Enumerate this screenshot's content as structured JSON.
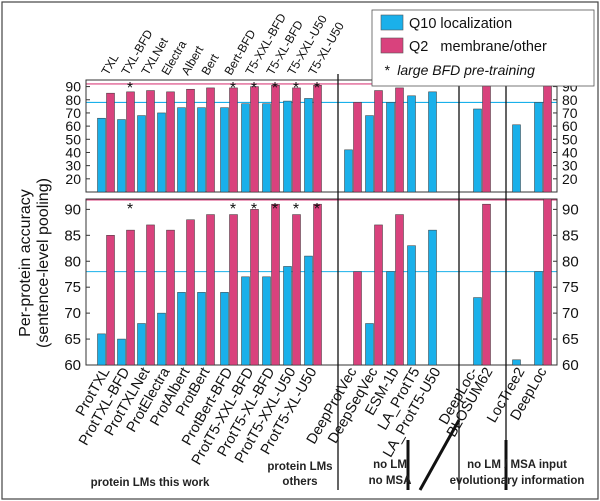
{
  "chart_data": {
    "type": "bar",
    "ylabel": "Per-protein accuracy",
    "ylabel2": "(sentence-level pooling)",
    "legend": {
      "placement": "top-right",
      "entries": [
        {
          "label": "Q10 localization",
          "color": "#1ab0ea"
        },
        {
          "label": "Q2   membrane/other",
          "color": "#d9427d"
        }
      ],
      "note": "*  large BFD pre-training"
    },
    "categories": [
      "ProtTXL",
      "ProtTXL-BFD",
      "ProtTXLNet",
      "ProtElectra",
      "ProtAlbert",
      "ProtBert",
      "ProtBert-BFD",
      "ProtT5-XXL-BFD",
      "ProtT5-XL-BFD",
      "ProtT5-XXL-U50",
      "ProtT5-XL-U50",
      "DeepProtVec",
      "DeepSeqVec",
      "ESM-1b",
      "LA_ProtT5",
      "LA_ProtT5-U50",
      "DeepLoc-BLOSUM62",
      "LocTree2",
      "DeepLoc"
    ],
    "top_labels": [
      "TXL",
      "TXL-BFD",
      "TXLNet",
      "Electra",
      "Albert",
      "Bert",
      "Bert-BFD",
      "T5-XXL-BFD",
      "T5-XL-BFD",
      "T5-XXL-U50",
      "T5-XL-U50"
    ],
    "bfd_marked": [
      1,
      6,
      7,
      8,
      9,
      10
    ],
    "series": [
      {
        "name": "Q10 localization",
        "values": [
          66,
          65,
          68,
          70,
          74,
          74,
          74,
          77,
          77,
          79,
          81,
          42,
          68,
          78,
          83,
          86,
          73,
          61,
          78
        ]
      },
      {
        "name": "Q2 membrane/other",
        "values": [
          85,
          86,
          87,
          86,
          88,
          89,
          89,
          90,
          91,
          89,
          91,
          78,
          87,
          89,
          null,
          null,
          91,
          null,
          92
        ]
      }
    ],
    "panels": [
      {
        "ylim": [
          10,
          95
        ],
        "yticks": [
          20,
          30,
          40,
          50,
          60,
          70,
          80,
          90
        ]
      },
      {
        "ylim": [
          60,
          92
        ],
        "yticks": [
          60,
          65,
          70,
          75,
          80,
          85,
          90
        ]
      }
    ],
    "reference_lines": [
      {
        "series": "Q10 localization",
        "value": 78,
        "color": "#1ab0ea"
      },
      {
        "series": "Q2 membrane/other",
        "value": 92,
        "color": "#d9427d"
      }
    ],
    "groups": [
      {
        "lines": [
          "protein LMs this work"
        ]
      },
      {
        "lines": [
          "protein LMs",
          "others"
        ]
      },
      {
        "lines": [
          "no LM",
          "no MSA"
        ]
      },
      {
        "lines": [
          "no LM / MSA input",
          "evolutionary information"
        ]
      }
    ]
  }
}
